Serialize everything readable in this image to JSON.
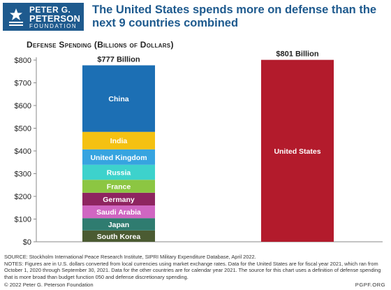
{
  "brand": {
    "line1": "PETER G.",
    "line2": "PETERSON",
    "line3": "FOUNDATION",
    "color": "#1e5a8e"
  },
  "title": "The United States spends more on defense than the next 9 countries combined",
  "subtitle": "Defense Spending (Billions of Dollars)",
  "chart_data": {
    "type": "bar",
    "stacked": true,
    "ylim": [
      0,
      800
    ],
    "yticks": [
      "$0",
      "$100",
      "$200",
      "$300",
      "$400",
      "$500",
      "$600",
      "$700",
      "$800"
    ],
    "grid": false,
    "bars": [
      {
        "total_label": "$777 Billion",
        "segments": [
          {
            "name": "South Korea",
            "value": 50,
            "color": "#4b5b32"
          },
          {
            "name": "Japan",
            "value": 54,
            "color": "#2f7c70"
          },
          {
            "name": "Saudi Arabia",
            "value": 56,
            "color": "#d066c2"
          },
          {
            "name": "Germany",
            "value": 56,
            "color": "#8e2560"
          },
          {
            "name": "France",
            "value": 57,
            "color": "#8cc642"
          },
          {
            "name": "Russia",
            "value": 66,
            "color": "#3dd2cc"
          },
          {
            "name": "United Kingdom",
            "value": 68,
            "color": "#36a4e0"
          },
          {
            "name": "India",
            "value": 77,
            "color": "#f4c112"
          },
          {
            "name": "China",
            "value": 293,
            "color": "#1c6fb4"
          }
        ]
      },
      {
        "total_label": "$801 Billion",
        "segments": [
          {
            "name": "United States",
            "value": 801,
            "color": "#b31b2c"
          }
        ]
      }
    ]
  },
  "footer": {
    "source": "SOURCE: Stockholm International Peace Research Institute, SIPRI Military Expenditure Database, April 2022.",
    "notes": "NOTES: Figures are in U.S. dollars converted from local currencies using market exchange rates. Data for the United States are for fiscal year 2021, which ran from October 1, 2020 through September 30, 2021. Data for the other countries are for calendar year 2021. The source for this chart uses a definition of defense spending that is more broad than budget function 050 and defense discretionary spending.",
    "copyright": "© 2022 Peter G. Peterson Foundation",
    "site": "PGPF.ORG"
  }
}
